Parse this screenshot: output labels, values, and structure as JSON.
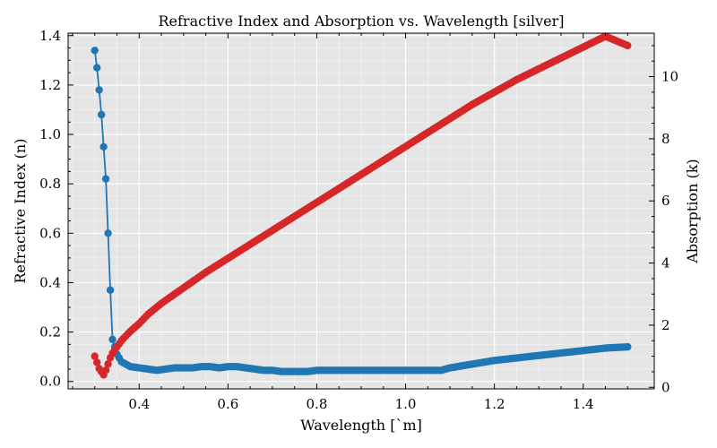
{
  "chart_data": {
    "type": "line",
    "title": "Refractive Index and Absorption vs. Wavelength [silver]",
    "xlabel": "Wavelength [`m]",
    "ylabel_left": "Refractive Index (n)",
    "ylabel_right": "Absorption (k)",
    "xlim": [
      0.24,
      1.56
    ],
    "ylim_left": [
      -0.03,
      1.41
    ],
    "ylim_right": [
      -0.05,
      11.4
    ],
    "x_ticks": [
      "0.4",
      "0.6",
      "0.8",
      "1.0",
      "1.2",
      "1.4"
    ],
    "y_left_ticks": [
      "0.0",
      "0.2",
      "0.4",
      "0.6",
      "0.8",
      "1.0",
      "1.2",
      "1.4"
    ],
    "y_right_ticks": [
      "0",
      "2",
      "4",
      "6",
      "8",
      "10"
    ],
    "grid": true,
    "background": "#e5e5e5",
    "series": [
      {
        "axis": "left",
        "color": "#1f77b4",
        "marker": "circle",
        "x": [
          0.3,
          0.305,
          0.31,
          0.315,
          0.32,
          0.325,
          0.33,
          0.335,
          0.34,
          0.345,
          0.35,
          0.36,
          0.38,
          0.4,
          0.42,
          0.44,
          0.46,
          0.48,
          0.5,
          0.52,
          0.54,
          0.56,
          0.58,
          0.6,
          0.62,
          0.64,
          0.66,
          0.68,
          0.7,
          0.72,
          0.74,
          0.76,
          0.78,
          0.8,
          0.85,
          0.9,
          0.95,
          1.0,
          1.05,
          1.08,
          1.1,
          1.15,
          1.2,
          1.25,
          1.3,
          1.35,
          1.4,
          1.45,
          1.5
        ],
        "y": [
          1.34,
          1.27,
          1.18,
          1.08,
          0.95,
          0.82,
          0.6,
          0.37,
          0.17,
          0.14,
          0.11,
          0.08,
          0.06,
          0.055,
          0.05,
          0.045,
          0.05,
          0.055,
          0.055,
          0.055,
          0.06,
          0.06,
          0.055,
          0.06,
          0.06,
          0.055,
          0.05,
          0.045,
          0.045,
          0.04,
          0.04,
          0.04,
          0.04,
          0.045,
          0.045,
          0.045,
          0.045,
          0.045,
          0.045,
          0.045,
          0.055,
          0.07,
          0.085,
          0.095,
          0.105,
          0.115,
          0.125,
          0.135,
          0.14
        ]
      },
      {
        "axis": "right",
        "color": "#d62728",
        "marker": "circle",
        "x": [
          0.3,
          0.305,
          0.31,
          0.315,
          0.32,
          0.325,
          0.33,
          0.335,
          0.34,
          0.35,
          0.36,
          0.37,
          0.38,
          0.4,
          0.42,
          0.45,
          0.5,
          0.55,
          0.6,
          0.65,
          0.7,
          0.75,
          0.8,
          0.85,
          0.9,
          0.95,
          1.0,
          1.05,
          1.1,
          1.15,
          1.2,
          1.25,
          1.3,
          1.35,
          1.4,
          1.45,
          1.5
        ],
        "y": [
          1.0,
          0.8,
          0.6,
          0.5,
          0.4,
          0.55,
          0.75,
          0.95,
          1.1,
          1.3,
          1.5,
          1.65,
          1.8,
          2.05,
          2.35,
          2.7,
          3.2,
          3.7,
          4.15,
          4.6,
          5.05,
          5.5,
          5.95,
          6.4,
          6.85,
          7.3,
          7.75,
          8.2,
          8.65,
          9.1,
          9.5,
          9.9,
          10.25,
          10.6,
          10.95,
          11.3,
          11.0
        ]
      }
    ]
  }
}
